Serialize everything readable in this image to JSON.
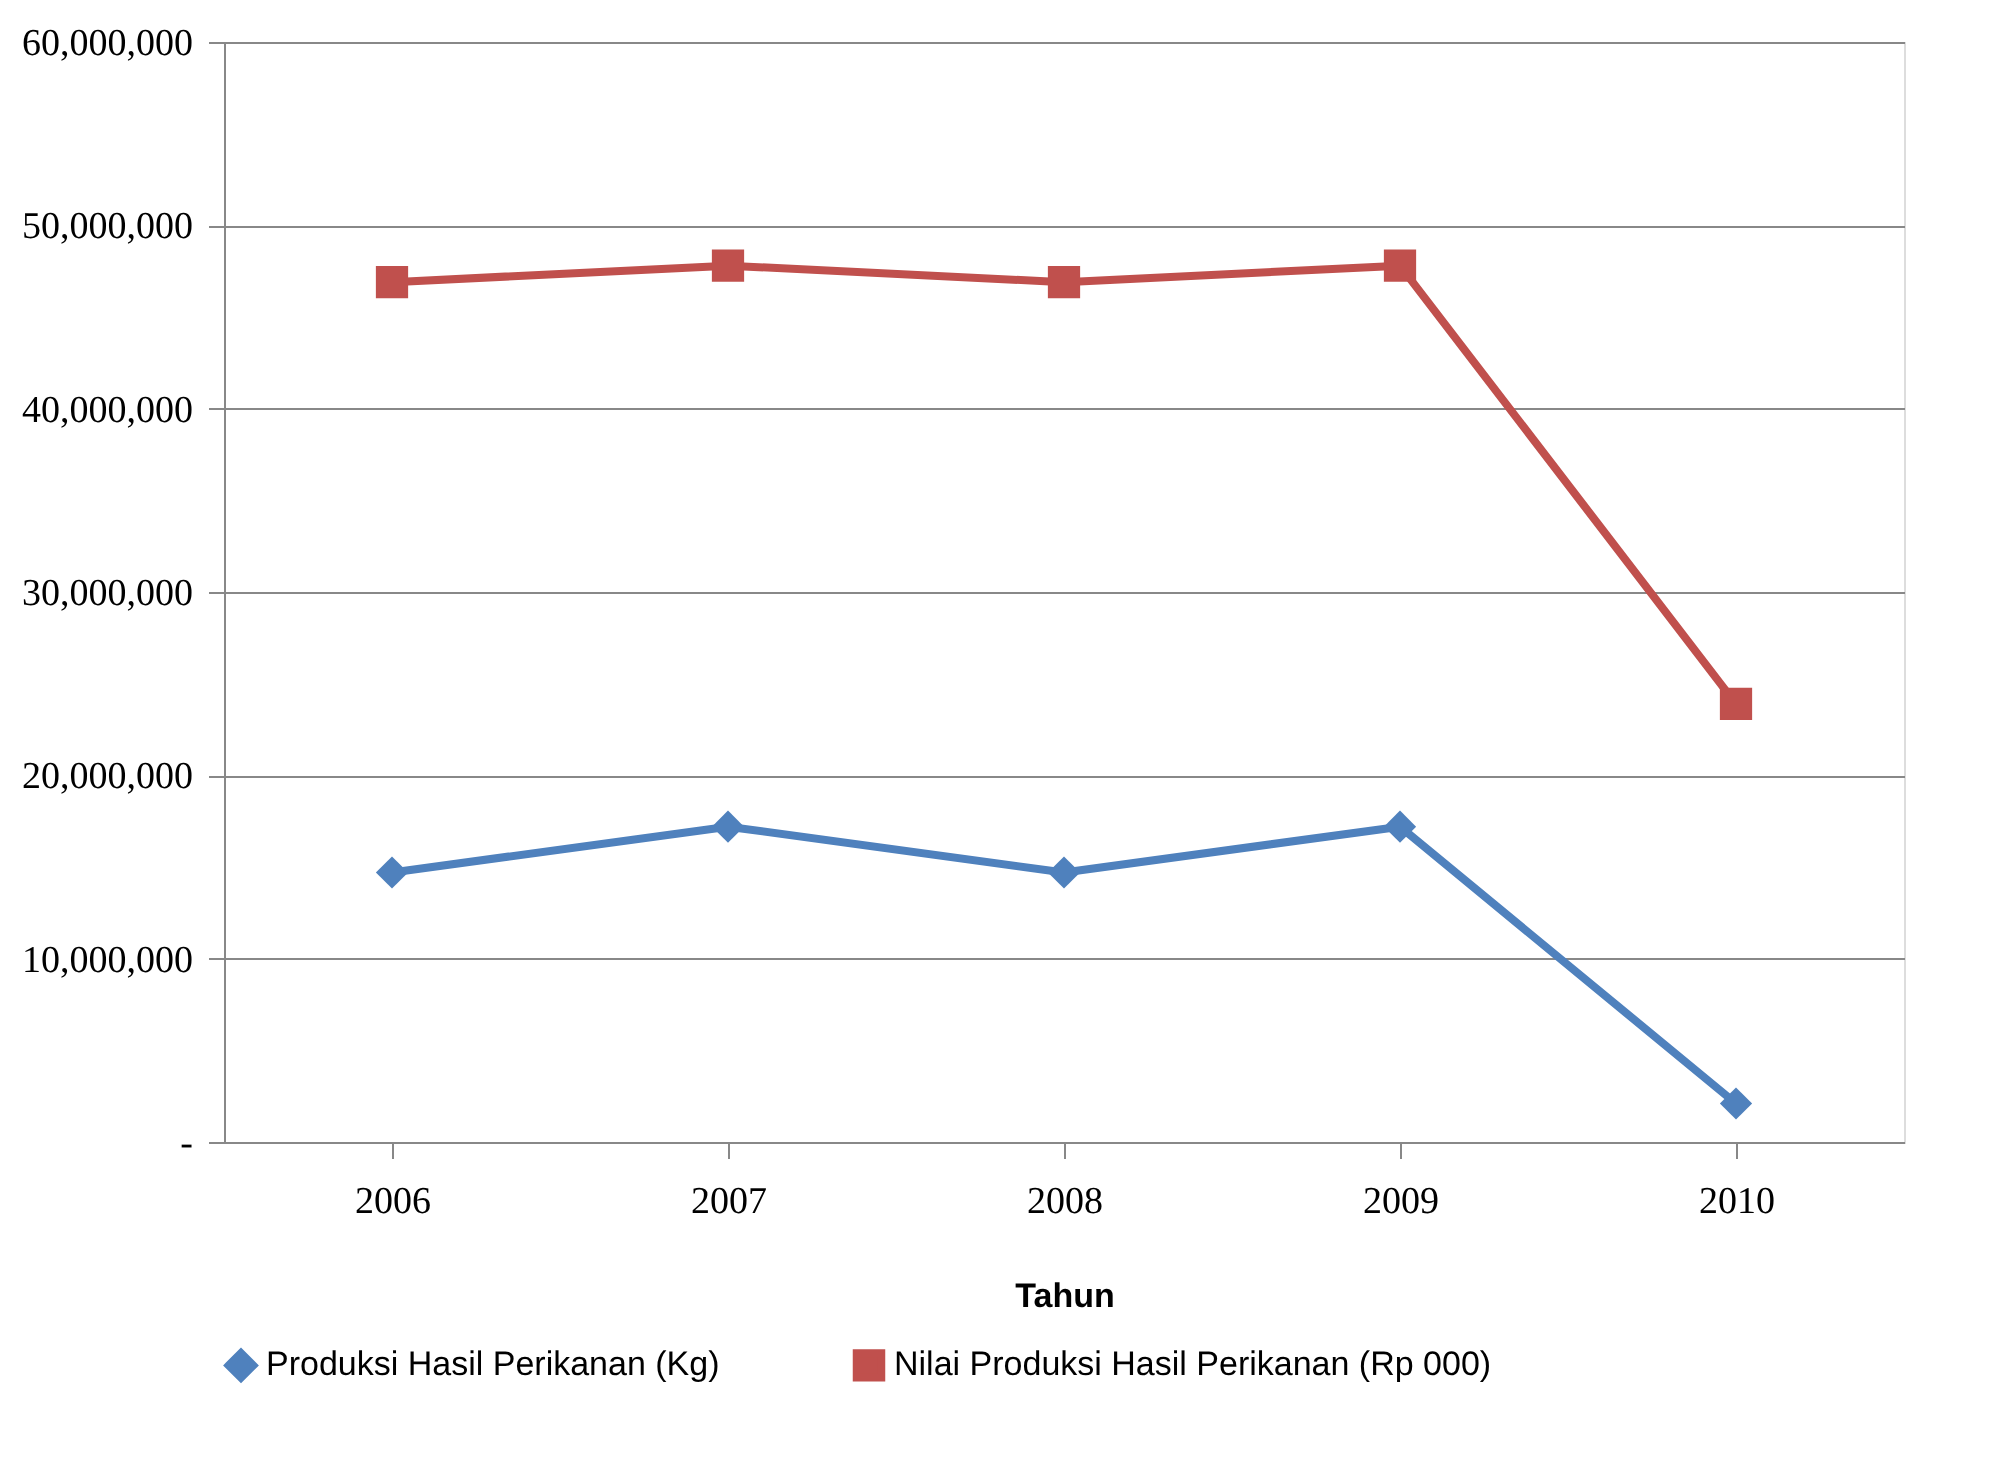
{
  "chart_data": {
    "type": "line",
    "xlabel": "Tahun",
    "categories": [
      "2006",
      "2007",
      "2008",
      "2009",
      "2010"
    ],
    "series": [
      {
        "name": "Produksi Hasil Perikanan (Kg)",
        "color": "#4f81bd",
        "marker": "diamond",
        "values": [
          14700000,
          17200000,
          14700000,
          17200000,
          2100000
        ]
      },
      {
        "name": "Nilai Produksi Hasil Perikanan (Rp 000)",
        "color": "#c0504d",
        "marker": "square",
        "values": [
          46900000,
          47800000,
          46900000,
          47800000,
          23900000
        ]
      }
    ],
    "ylim": [
      0,
      60000000
    ],
    "yticks": [
      {
        "value": 0,
        "label": "-"
      },
      {
        "value": 10000000,
        "label": "10,000,000"
      },
      {
        "value": 20000000,
        "label": "20,000,000"
      },
      {
        "value": 30000000,
        "label": "30,000,000"
      },
      {
        "value": 40000000,
        "label": "40,000,000"
      },
      {
        "value": 50000000,
        "label": "50,000,000"
      },
      {
        "value": 60000000,
        "label": "60,000,000"
      }
    ],
    "grid": "y",
    "legend": "bottom",
    "line_style": "solid"
  }
}
